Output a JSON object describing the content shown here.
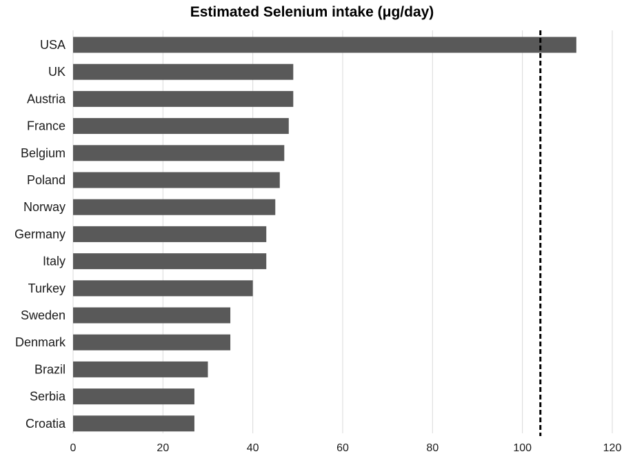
{
  "chart_data": {
    "type": "bar",
    "orientation": "horizontal",
    "title": "Estimated Selenium intake (μg/day)",
    "xlabel": "",
    "ylabel": "",
    "categories": [
      "USA",
      "UK",
      "Austria",
      "France",
      "Belgium",
      "Poland",
      "Norway",
      "Germany",
      "Italy",
      "Turkey",
      "Sweden",
      "Denmark",
      "Brazil",
      "Serbia",
      "Croatia"
    ],
    "values": [
      112,
      49,
      49,
      48,
      47,
      46,
      45,
      43,
      43,
      40,
      35,
      35,
      30,
      27,
      27
    ],
    "xlim": [
      0,
      120
    ],
    "xticks": [
      "0",
      "20",
      "40",
      "60",
      "80",
      "100",
      "120"
    ],
    "reference_line": {
      "value": 104,
      "style": "dashed"
    },
    "grid": "vertical",
    "legend": "none",
    "colors": {
      "bar": "#595959",
      "grid": "#d9d9d9",
      "reference": "#000000"
    }
  }
}
